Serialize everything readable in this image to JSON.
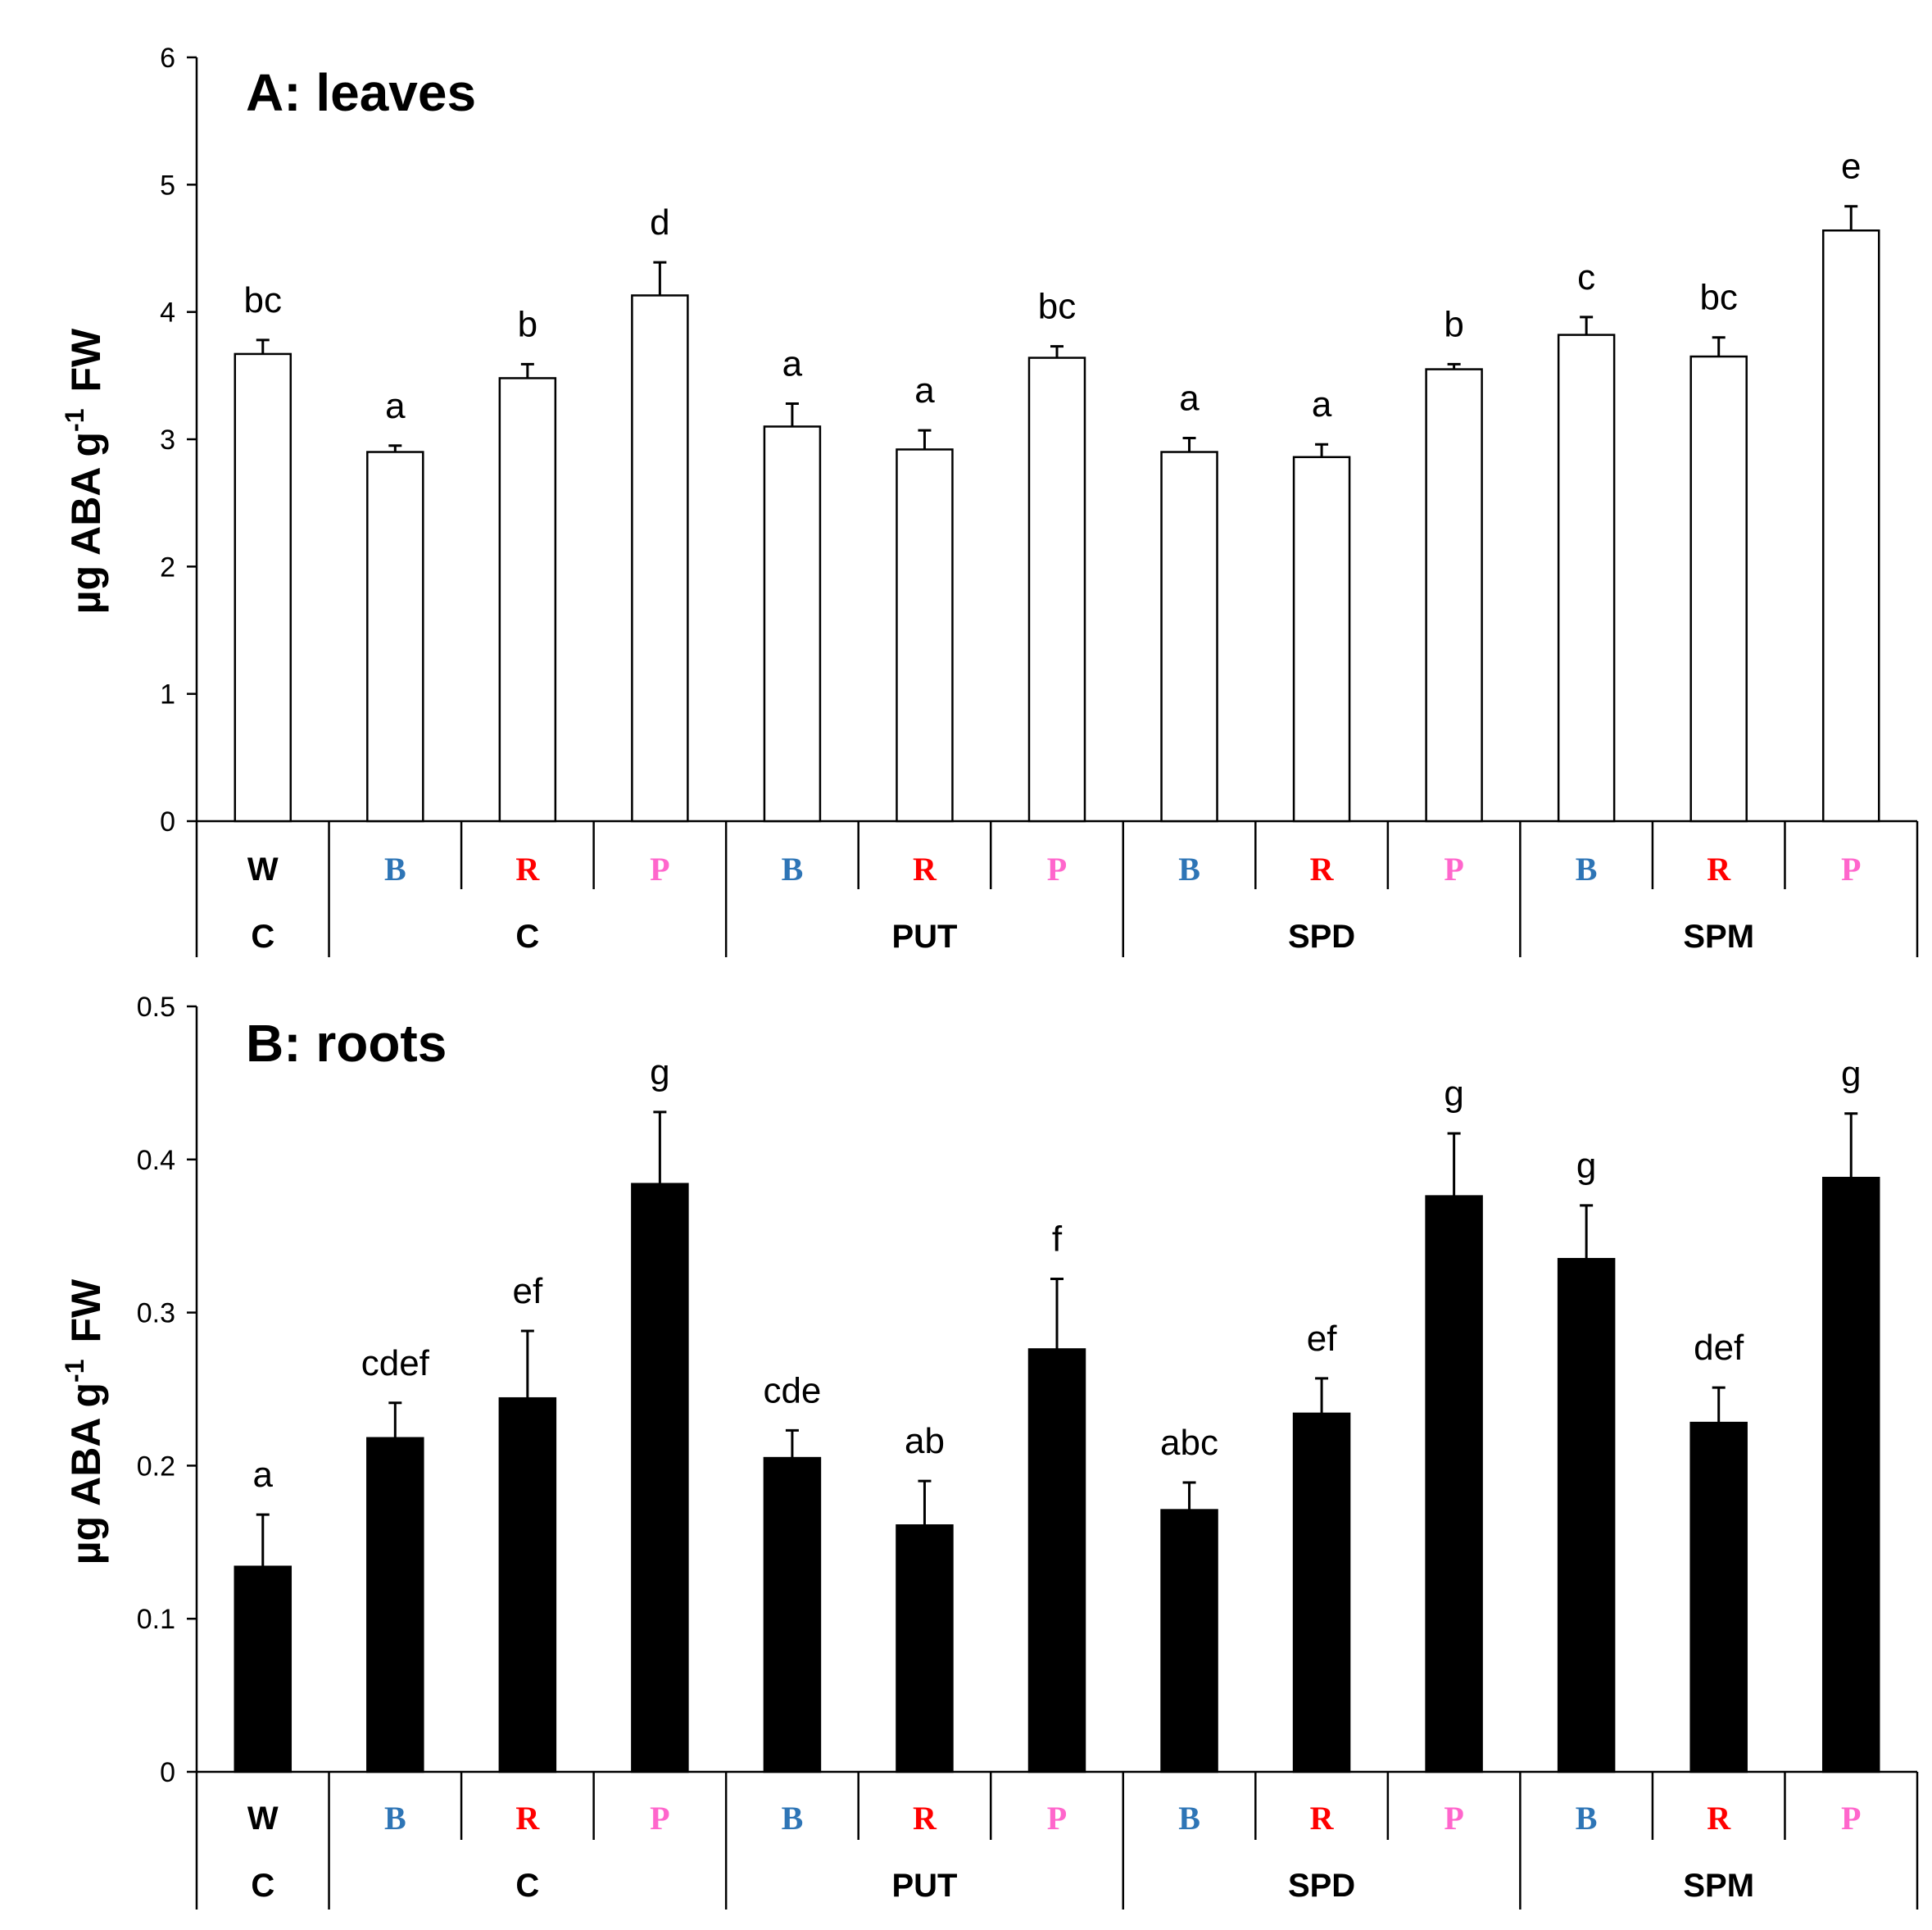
{
  "colors": {
    "B": "#2E75B6",
    "R": "#FF0000",
    "P": "#FF66CC",
    "W": "#000000",
    "bar_leaves": "#FFFFFF",
    "bar_roots": "#000000",
    "axis": "#000000"
  },
  "x_categories": {
    "lights": [
      "W",
      "B",
      "R",
      "P",
      "B",
      "R",
      "P",
      "B",
      "R",
      "P",
      "B",
      "R",
      "P"
    ],
    "light_types": [
      "W",
      "B",
      "R",
      "P",
      "B",
      "R",
      "P",
      "B",
      "R",
      "P",
      "B",
      "R",
      "P"
    ],
    "groups": [
      {
        "label": "C",
        "count": 1
      },
      {
        "label": "C",
        "count": 3
      },
      {
        "label": "PUT",
        "count": 3
      },
      {
        "label": "SPD",
        "count": 3
      },
      {
        "label": "SPM",
        "count": 3
      }
    ]
  },
  "chart_data": [
    {
      "type": "bar",
      "title": "A: leaves",
      "ylabel_main": "µg ABA g",
      "ylabel_sup": "-1",
      "ylabel_end": "FW",
      "ylim": [
        0,
        6
      ],
      "yticks": [
        0,
        1,
        2,
        3,
        4,
        5,
        6
      ],
      "ytick_labels": [
        "0",
        "1",
        "2",
        "3",
        "4",
        "5",
        "6"
      ],
      "values": [
        3.67,
        2.9,
        3.48,
        4.13,
        3.1,
        2.92,
        3.64,
        2.9,
        2.86,
        3.55,
        3.82,
        3.65,
        4.64
      ],
      "errors": [
        0.11,
        0.05,
        0.11,
        0.26,
        0.18,
        0.15,
        0.09,
        0.11,
        0.1,
        0.04,
        0.14,
        0.15,
        0.19
      ],
      "letters": [
        "bc",
        "a",
        "b",
        "d",
        "a",
        "a",
        "bc",
        "a",
        "a",
        "b",
        "c",
        "bc",
        "e"
      ],
      "bar_fill": "white"
    },
    {
      "type": "bar",
      "title": "B: roots",
      "ylabel_main": "µg ABA g",
      "ylabel_sup": "-1",
      "ylabel_end": "FW",
      "ylim": [
        0,
        0.5
      ],
      "yticks": [
        0,
        0.1,
        0.2,
        0.3,
        0.4,
        0.5
      ],
      "ytick_labels": [
        "0",
        "0.1",
        "0.2",
        "0.3",
        "0.4",
        "0.5"
      ],
      "values": [
        0.134,
        0.218,
        0.244,
        0.384,
        0.205,
        0.161,
        0.276,
        0.171,
        0.234,
        0.376,
        0.335,
        0.228,
        0.388
      ],
      "errors": [
        0.034,
        0.023,
        0.044,
        0.047,
        0.018,
        0.029,
        0.046,
        0.018,
        0.023,
        0.041,
        0.035,
        0.023,
        0.042
      ],
      "letters": [
        "a",
        "cdef",
        "ef",
        "g",
        "cde",
        "ab",
        "f",
        "abc",
        "ef",
        "g",
        "g",
        "def",
        "g"
      ],
      "bar_fill": "black"
    }
  ]
}
